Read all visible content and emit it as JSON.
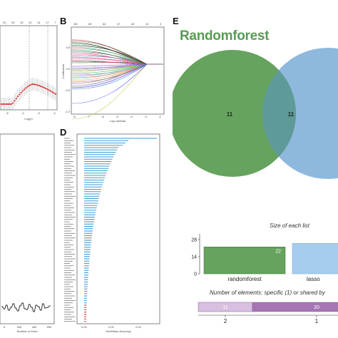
{
  "panels": {
    "b_label": "B",
    "d_label": "D",
    "e_label": "E"
  },
  "venn": {
    "title": "Randomforest",
    "left_only": "11",
    "intersection": "11",
    "left_color": "#66a35e",
    "right_color": "#8fb8dd"
  },
  "panel_a": {
    "xlabel": "Log(λ)",
    "top_ticks": [
      "20",
      "20",
      "19",
      "19",
      "14",
      "17",
      "7"
    ],
    "x_ticks": [
      "-5",
      "-4",
      "-3",
      "-2"
    ]
  },
  "panel_b": {
    "xlabel": "Log Lambda",
    "ylabel": "Coefficients",
    "top_ticks": [
      "80",
      "80",
      "64",
      "47",
      "40",
      "12",
      "0"
    ],
    "x_ticks": [
      "-8",
      "-7",
      "-6",
      "-5",
      "-4",
      "-3",
      "-2"
    ],
    "y_ticks": [
      "0.5",
      "0.0",
      "-0.5",
      "-1.0"
    ]
  },
  "panel_c": {
    "xlabel": "Number of trees",
    "x_ticks": [
      "0",
      "200",
      "400",
      "500"
    ]
  },
  "panel_d": {
    "xlabel": "Gini/Mean Accuracy",
    "x_ticks": [
      "0.00",
      "0.01",
      "0.02"
    ]
  },
  "upset": {
    "title": "Size of each list",
    "y_ticks": [
      "28",
      "14",
      "0"
    ],
    "bar1_label": "randomforest",
    "bar1_value": "22",
    "bar2_label": "lasso",
    "bar1_color": "#66a35e",
    "bar2_color": "#a7cdee",
    "subtitle": "Number of elements: specific (1) or shared by",
    "seg1_value": "11",
    "seg2_value": "20",
    "bottom_ticks": [
      "2",
      "1"
    ]
  }
}
